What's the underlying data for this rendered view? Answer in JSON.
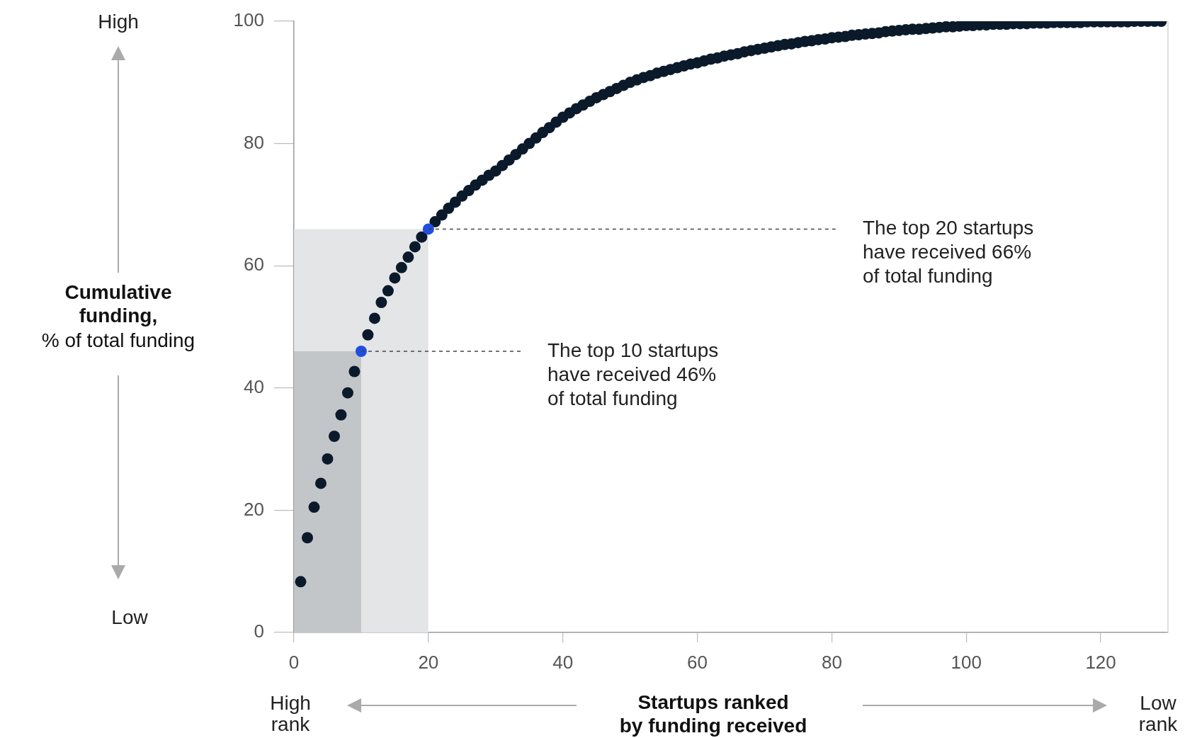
{
  "chart_data": {
    "type": "scatter",
    "xlabel": "Startups ranked by funding received",
    "ylabel": "Cumulative funding, % of total funding",
    "xlim": [
      0,
      130
    ],
    "xticks": [
      0,
      20,
      40,
      60,
      80,
      100,
      120
    ],
    "ylim": [
      0,
      100
    ],
    "yticks": [
      0,
      20,
      40,
      60,
      80,
      100
    ],
    "grid": false,
    "legend": false,
    "series": [
      {
        "marker": "circle",
        "color": "#0b1a2b",
        "x": [
          1,
          2,
          3,
          4,
          5,
          6,
          7,
          8,
          9,
          10,
          11,
          12,
          13,
          14,
          15,
          16,
          17,
          18,
          19,
          20,
          21,
          22,
          23,
          24,
          25,
          26,
          27,
          28,
          29,
          30,
          31,
          32,
          33,
          34,
          35,
          36,
          37,
          38,
          39,
          40,
          41,
          42,
          43,
          44,
          45,
          46,
          47,
          48,
          49,
          50,
          51,
          52,
          53,
          54,
          55,
          56,
          57,
          58,
          59,
          60,
          61,
          62,
          63,
          64,
          65,
          66,
          67,
          68,
          69,
          70,
          71,
          72,
          73,
          74,
          75,
          76,
          77,
          78,
          79,
          80,
          81,
          82,
          83,
          84,
          85,
          86,
          87,
          88,
          89,
          90,
          91,
          92,
          93,
          94,
          95,
          96,
          97,
          98,
          99,
          100,
          101,
          102,
          103,
          104,
          105,
          106,
          107,
          108,
          109,
          110,
          111,
          112,
          113,
          114,
          115,
          116,
          117,
          118,
          119,
          120,
          121,
          122,
          123,
          124,
          125,
          126,
          127,
          128,
          129
        ],
        "values": [
          8.3,
          15.5,
          20.5,
          24.4,
          28.4,
          32.1,
          35.6,
          39.2,
          42.7,
          null,
          48.7,
          51.4,
          54.0,
          55.9,
          58.0,
          59.7,
          61.4,
          63.1,
          64.7,
          null,
          67.2,
          68.3,
          69.4,
          70.4,
          71.4,
          72.3,
          73.2,
          74.0,
          74.8,
          75.5,
          76.4,
          77.3,
          78.2,
          79.1,
          80.0,
          80.9,
          81.8,
          82.6,
          83.5,
          84.3,
          85.0,
          85.7,
          86.3,
          86.9,
          87.5,
          88.0,
          88.5,
          89.0,
          89.5,
          90.0,
          90.4,
          90.8,
          91.1,
          91.5,
          91.8,
          92.1,
          92.4,
          92.7,
          93.0,
          93.2,
          93.5,
          93.8,
          94.0,
          94.3,
          94.5,
          94.7,
          95.0,
          95.2,
          95.4,
          95.6,
          95.8,
          96.0,
          96.2,
          96.3,
          96.5,
          96.7,
          96.8,
          97.0,
          97.1,
          97.3,
          97.4,
          97.5,
          97.7,
          97.8,
          97.9,
          98.0,
          98.1,
          98.3,
          98.4,
          98.5,
          98.6,
          98.7,
          98.7,
          98.8,
          98.9,
          99.0,
          99.1,
          99.1,
          99.2,
          99.3,
          99.3,
          99.4,
          99.4,
          99.5,
          99.5,
          99.5,
          99.6,
          99.6,
          99.6,
          99.7,
          99.7,
          99.7,
          99.8,
          99.8,
          99.8,
          99.8,
          99.8,
          99.9,
          99.9,
          99.9,
          99.9,
          99.9,
          99.9,
          99.9,
          100,
          100,
          100,
          100,
          100
        ]
      },
      {
        "marker": "circle",
        "color": "#1f4fe0",
        "x": [
          10,
          20
        ],
        "values": [
          46,
          66
        ]
      },
      {
        "type": "line",
        "line_style": "dashed",
        "color": "#444444",
        "x": [
          10,
          34
        ],
        "values": [
          46,
          46
        ]
      },
      {
        "type": "line",
        "line_style": "dashed",
        "color": "#444444",
        "x": [
          20,
          81
        ],
        "values": [
          66,
          66
        ]
      },
      {
        "type": "area",
        "x": [
          0,
          20
        ],
        "values": [
          66,
          66
        ],
        "color": "#e4e5e7"
      },
      {
        "type": "area",
        "x": [
          0,
          10
        ],
        "values": [
          46,
          46
        ],
        "color": "#c3c6c9"
      }
    ],
    "annotations": [
      "High",
      "Low",
      "High rank",
      "Low rank",
      "The top 10 startups\nhave received 46%\nof total funding",
      "The top 20 startups\nhave received 66%\nof total funding"
    ]
  }
}
